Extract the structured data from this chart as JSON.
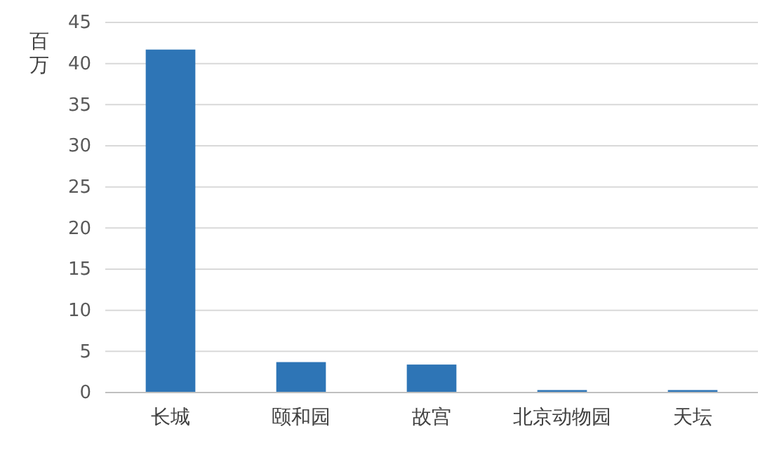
{
  "chart_data": {
    "type": "bar",
    "ylabel": "百万",
    "categories": [
      "长城",
      "颐和园",
      "故宫",
      "北京动物园",
      "天坛"
    ],
    "values": [
      41.7,
      3.7,
      3.4,
      0.3,
      0.3
    ],
    "color": "#2e75b6",
    "ylim": [
      0,
      45
    ],
    "yticks": [
      0,
      5,
      10,
      15,
      20,
      25,
      30,
      35,
      40,
      45
    ],
    "grid": "y"
  }
}
